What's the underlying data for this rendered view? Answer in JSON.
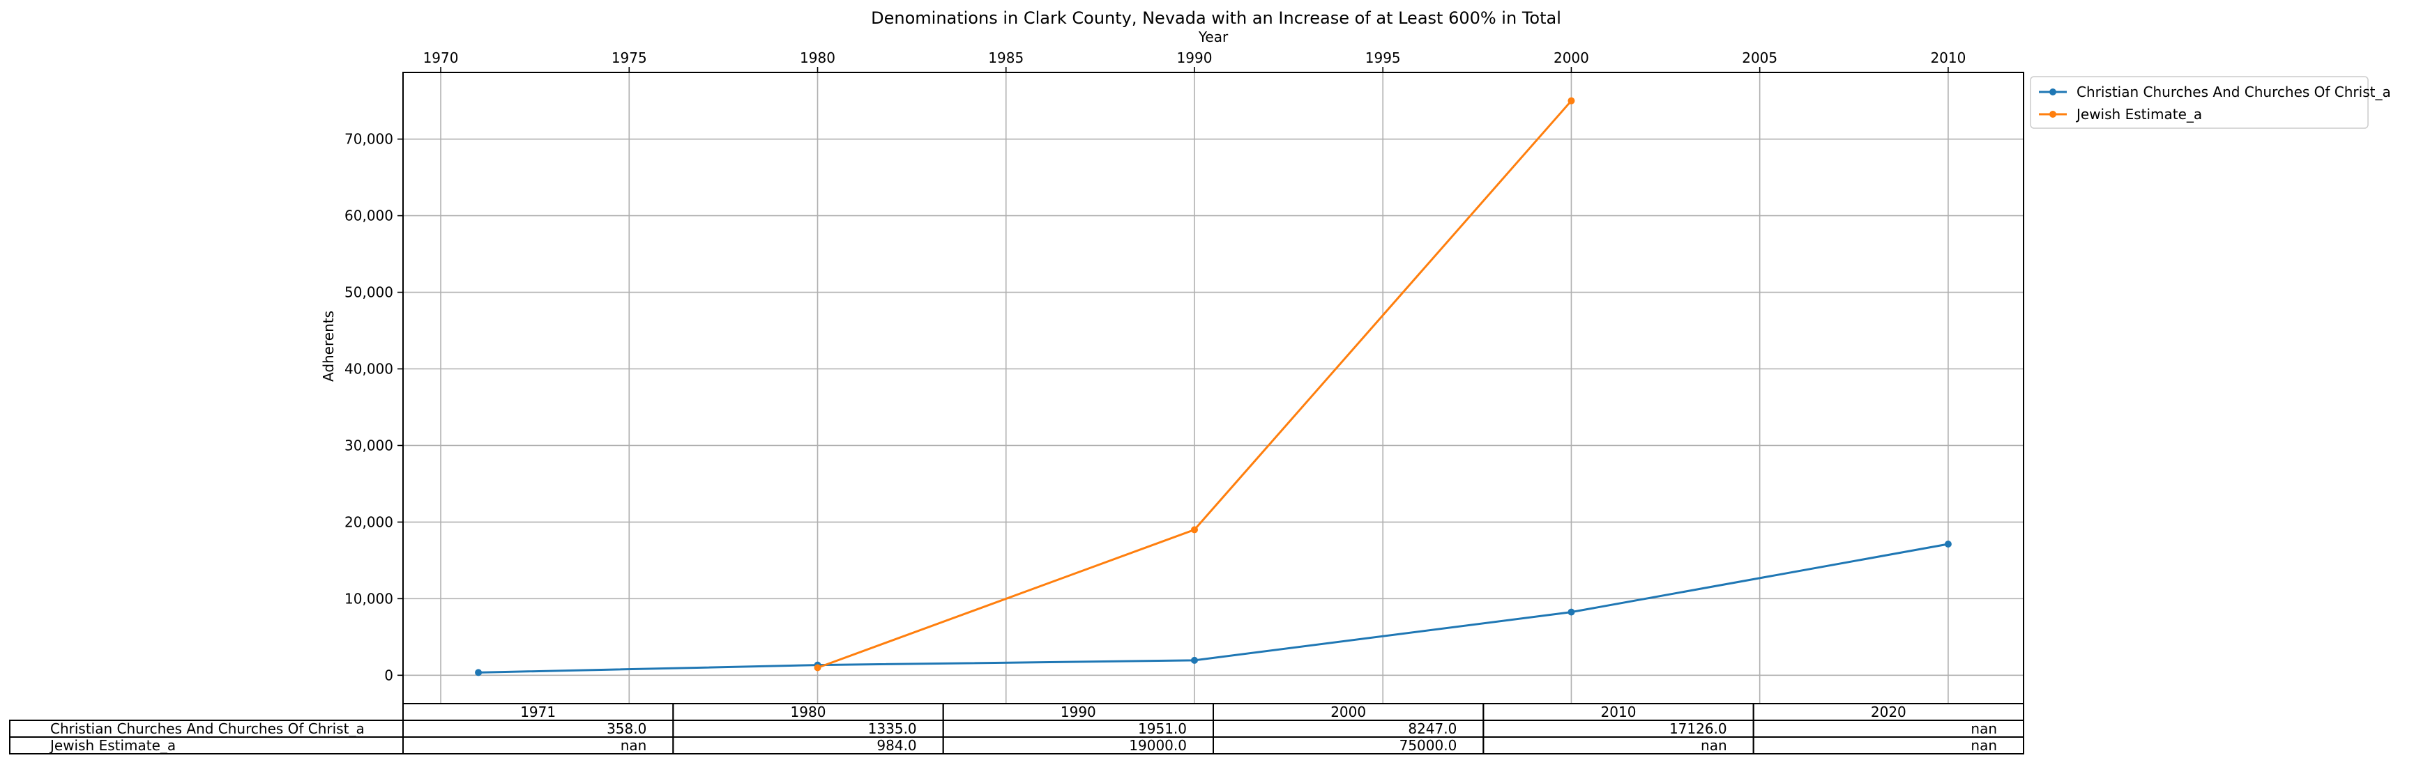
{
  "chart_data": {
    "type": "line",
    "title": "Denominations in Clark County, Nevada with an Increase of at Least 600% in Total",
    "xlabel": "Year",
    "ylabel": "Adherents",
    "xlim": [
      1969,
      2012
    ],
    "ylim": [
      -3700,
      78700
    ],
    "x_ticks": [
      1970,
      1975,
      1980,
      1985,
      1990,
      1995,
      2000,
      2005,
      2010
    ],
    "y_ticks": [
      0,
      10000,
      20000,
      30000,
      40000,
      50000,
      60000,
      70000
    ],
    "y_tick_labels": [
      "0",
      "10,000",
      "20,000",
      "30,000",
      "40,000",
      "50,000",
      "60,000",
      "70,000"
    ],
    "grid": true,
    "legend": "outside-top-right",
    "series": [
      {
        "name": "Christian Churches And Churches Of Christ_a",
        "color": "#1f77b4",
        "points": [
          [
            1971,
            358
          ],
          [
            1980,
            1335
          ],
          [
            1990,
            1951
          ],
          [
            2000,
            8247
          ],
          [
            2010,
            17126
          ]
        ]
      },
      {
        "name": "Jewish Estimate_a",
        "color": "#ff7f0e",
        "points": [
          [
            1980,
            984
          ],
          [
            1990,
            19000
          ],
          [
            2000,
            75000
          ]
        ]
      }
    ],
    "table": {
      "columns": [
        "1971",
        "1980",
        "1990",
        "2000",
        "2010",
        "2020"
      ],
      "rows": [
        {
          "label": "Christian Churches And Churches Of Christ_a",
          "cells": [
            "358.0",
            "1335.0",
            "1951.0",
            "8247.0",
            "17126.0",
            "nan"
          ]
        },
        {
          "label": "Jewish Estimate_a",
          "cells": [
            "nan",
            "984.0",
            "19000.0",
            "75000.0",
            "nan",
            "nan"
          ]
        }
      ]
    }
  }
}
